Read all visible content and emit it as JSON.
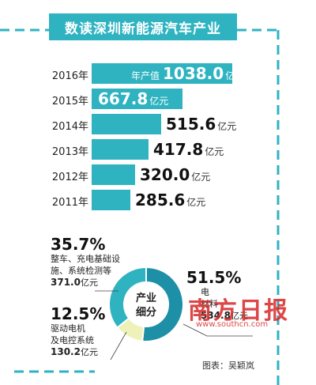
{
  "title": "数读深圳新能源汽车产业",
  "credit": "图表：吴颖岚",
  "watermark": {
    "text": "南方日报",
    "url": "www.southcn.com"
  },
  "chart_data": [
    {
      "type": "bar",
      "title": "",
      "categories": [
        "2016年",
        "2015年",
        "2014年",
        "2013年",
        "2012年",
        "2011年"
      ],
      "values": [
        1038.0,
        667.8,
        515.6,
        417.8,
        320.0,
        285.6
      ],
      "value_prefix": "年产值",
      "unit": "亿元",
      "orientation": "horizontal",
      "colors": [
        "#2fb3c0"
      ]
    },
    {
      "type": "pie",
      "center_label": [
        "产业",
        "细分"
      ],
      "segments": [
        {
          "percent": "35.7%",
          "value": 35.7,
          "label_lines": [
            "整车、充电基础设",
            "施、系统检测等"
          ],
          "amount": "371.0",
          "unit": "亿元",
          "color": "#2fb3c0"
        },
        {
          "percent": "12.5%",
          "value": 12.5,
          "label_lines": [
            "驱动电机",
            "及电控系统"
          ],
          "amount": "130.2",
          "unit": "亿元",
          "color": "#eef2b8"
        },
        {
          "percent": "51.5%",
          "value": 51.5,
          "label_lines": [
            "电",
            "材料"
          ],
          "amount": "534.8",
          "unit": "亿元",
          "color": "#1d8fa6"
        }
      ]
    }
  ]
}
